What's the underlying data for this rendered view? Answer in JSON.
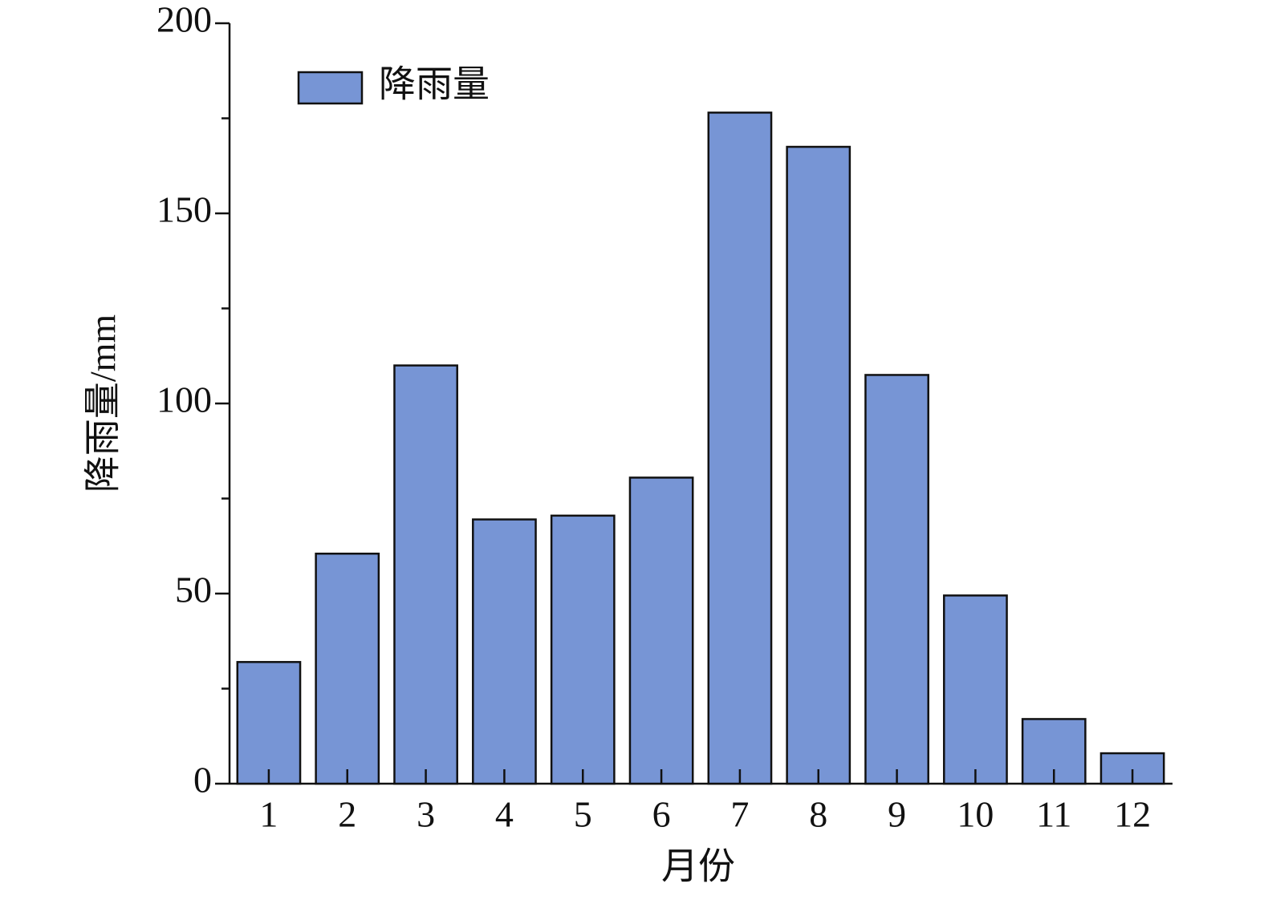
{
  "chart_data": {
    "type": "bar",
    "x_label": "月份",
    "y_label": "降雨量/mm",
    "categories": [
      "1",
      "2",
      "3",
      "4",
      "5",
      "6",
      "7",
      "8",
      "9",
      "10",
      "11",
      "12"
    ],
    "series": [
      {
        "name": "降雨量",
        "color": "#7795d5",
        "values": [
          32,
          60.5,
          110,
          69.5,
          70.5,
          80.5,
          176.5,
          167.5,
          107.5,
          49.5,
          17,
          8
        ]
      }
    ],
    "ylim": [
      0,
      200
    ],
    "yticks": [
      0,
      50,
      100,
      150,
      200
    ],
    "yminorticks": [
      25,
      75,
      125,
      175
    ],
    "grid": false,
    "legend": "upper left"
  }
}
